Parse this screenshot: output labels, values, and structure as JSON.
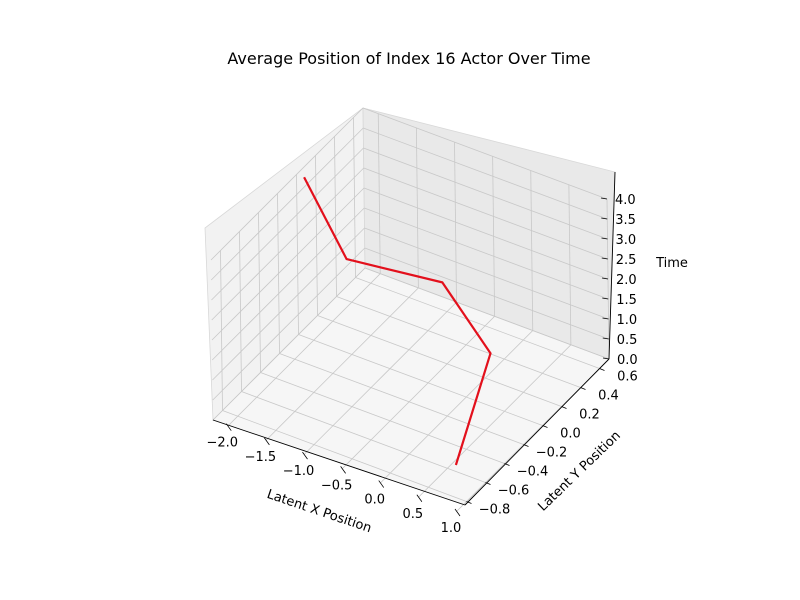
{
  "chart_data": {
    "type": "line3d",
    "title": "Average Position of Index 16 Actor Over Time",
    "xlabel": "Latent X Position",
    "ylabel": "Latent Y Position",
    "zlabel": "Time",
    "xlim": [
      -2.2,
      1.0
    ],
    "ylim": [
      -0.9,
      0.7
    ],
    "zlim": [
      0.0,
      4.0
    ],
    "x_ticks": [
      -2.0,
      -1.5,
      -1.0,
      -0.5,
      0.0,
      0.5,
      1.0
    ],
    "x_tick_labels": [
      "−2.0",
      "−1.5",
      "−1.0",
      "−0.5",
      "0.0",
      "0.5",
      "1.0"
    ],
    "y_ticks": [
      -0.8,
      -0.6,
      -0.4,
      -0.2,
      0.0,
      0.2,
      0.4,
      0.6
    ],
    "y_tick_labels": [
      "−0.8",
      "−0.6",
      "−0.4",
      "−0.2",
      "0.0",
      "0.2",
      "0.4",
      "0.6"
    ],
    "z_ticks": [
      0.0,
      0.5,
      1.0,
      1.5,
      2.0,
      2.5,
      3.0,
      3.5,
      4.0
    ],
    "z_tick_labels": [
      "0.0",
      "0.5",
      "1.0",
      "1.5",
      "2.0",
      "2.5",
      "3.0",
      "3.5",
      "4.0"
    ],
    "grid": true,
    "series": [
      {
        "color": "#e3101c",
        "x": [
          0.55,
          0.2,
          -0.55,
          -1.3,
          -2.1
        ],
        "y": [
          -0.55,
          0.1,
          0.2,
          -0.2,
          0.0
        ],
        "z": [
          0.0,
          1.0,
          2.0,
          3.0,
          4.0
        ]
      }
    ]
  }
}
